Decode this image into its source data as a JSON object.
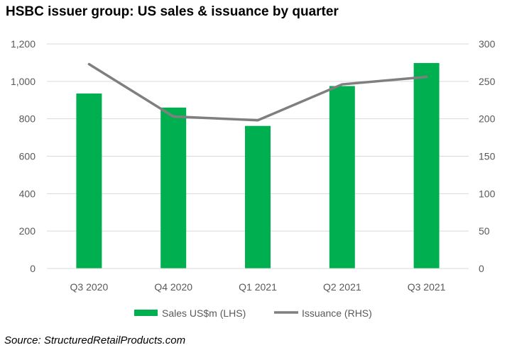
{
  "title": "HSBC issuer group: US sales & issuance by quarter",
  "source": "Source: StructuredRetailProducts.com",
  "colors": {
    "bars": "#00B050",
    "line": "#7F7F7F",
    "grid": "#D9D9D9",
    "axis_text": "#595959"
  },
  "chart_data": {
    "type": "bar",
    "categories": [
      "Q3 2020",
      "Q4 2020",
      "Q1 2021",
      "Q2 2021",
      "Q3 2021"
    ],
    "series": [
      {
        "name": "Sales US$m (LHS)",
        "type": "bar",
        "axis": "left",
        "values": [
          935,
          860,
          762,
          975,
          1098
        ]
      },
      {
        "name": "Issuance (RHS)",
        "type": "line",
        "axis": "right",
        "values": [
          273,
          203,
          198,
          246,
          256
        ]
      }
    ],
    "y_left": {
      "ylim": [
        0,
        1200
      ],
      "ticks": [
        "0",
        "200",
        "400",
        "600",
        "800",
        "1,000",
        "1,200"
      ]
    },
    "y_right": {
      "ylim": [
        0,
        300
      ],
      "ticks": [
        "0",
        "50",
        "100",
        "150",
        "200",
        "250",
        "300"
      ]
    },
    "grid": true,
    "legend": "bottom"
  }
}
